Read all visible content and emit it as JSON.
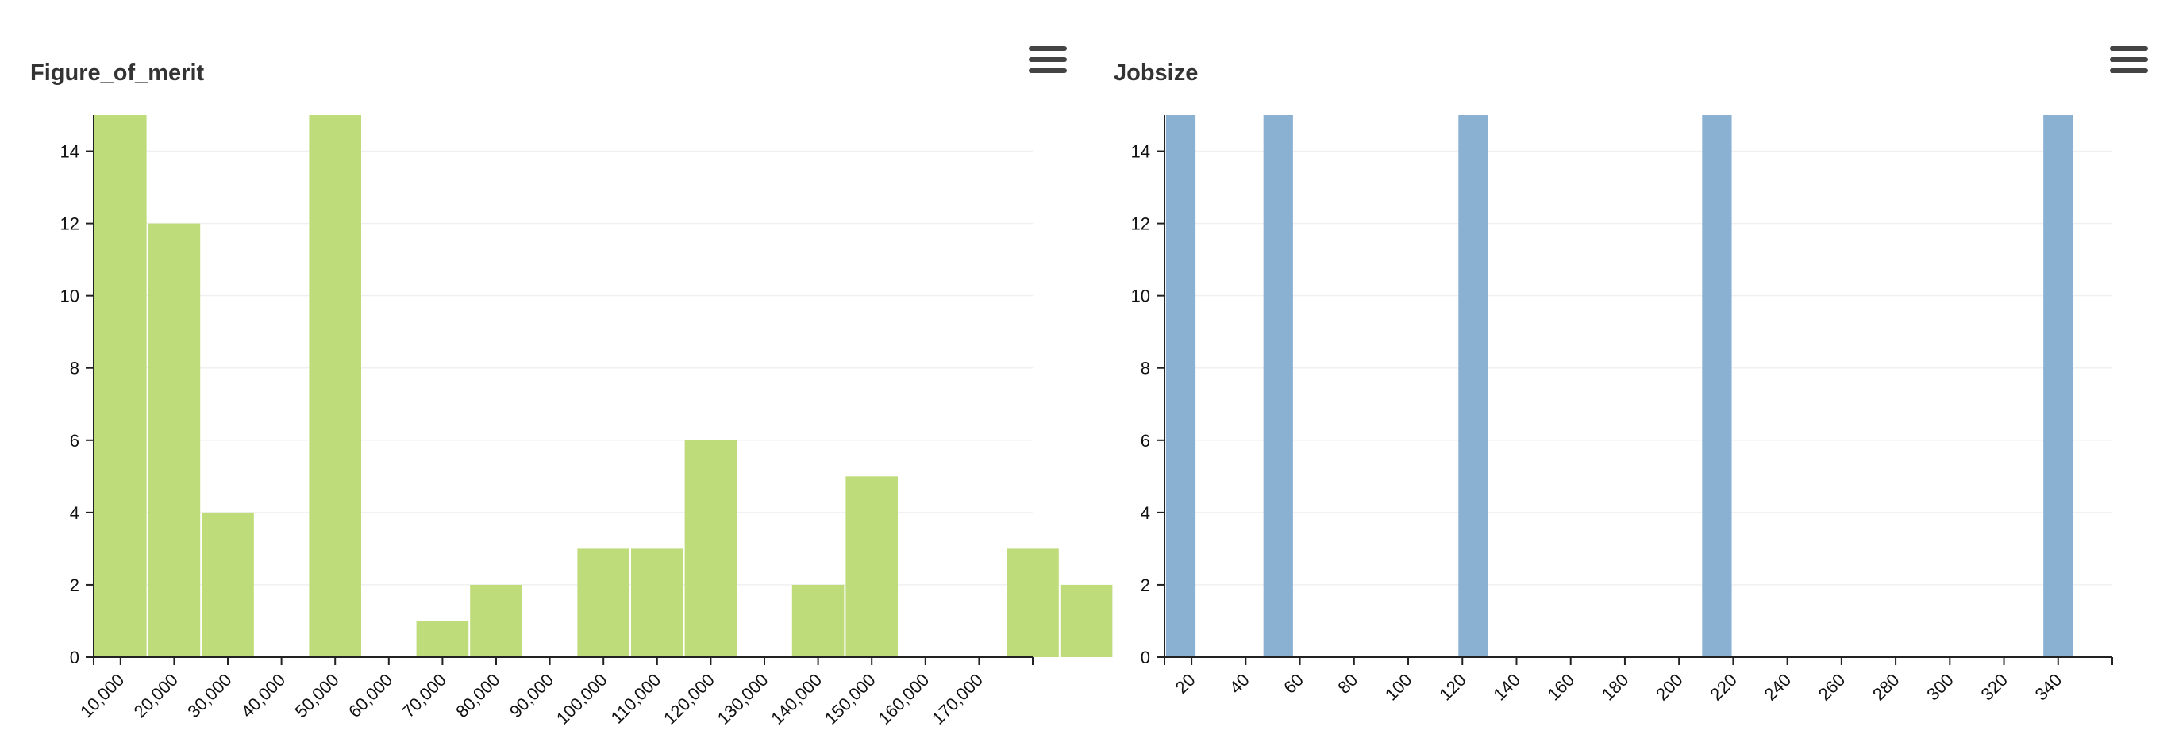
{
  "chart_data": [
    {
      "type": "bar",
      "title": "Figure_of_merit",
      "x_tick_labels": [
        "10,000",
        "20,000",
        "30,000",
        "40,000",
        "50,000",
        "60,000",
        "70,000",
        "80,000",
        "90,000",
        "100,000",
        "110,000",
        "120,000",
        "130,000",
        "140,000",
        "150,000",
        "160,000",
        "170,000"
      ],
      "bins": [
        {
          "center": 10000,
          "count": 15
        },
        {
          "center": 20000,
          "count": 12
        },
        {
          "center": 30000,
          "count": 4
        },
        {
          "center": 40000,
          "count": 0
        },
        {
          "center": 50000,
          "count": 15
        },
        {
          "center": 60000,
          "count": 0
        },
        {
          "center": 70000,
          "count": 1
        },
        {
          "center": 80000,
          "count": 2
        },
        {
          "center": 90000,
          "count": 0
        },
        {
          "center": 100000,
          "count": 3
        },
        {
          "center": 110000,
          "count": 3
        },
        {
          "center": 120000,
          "count": 6
        },
        {
          "center": 130000,
          "count": 0
        },
        {
          "center": 140000,
          "count": 2
        },
        {
          "center": 150000,
          "count": 5
        },
        {
          "center": 160000,
          "count": 0
        },
        {
          "center": 170000,
          "count": 0
        },
        {
          "center": 180000,
          "count": 3
        },
        {
          "center": 190000,
          "count": 2
        }
      ],
      "y_ticks": [
        0,
        2,
        4,
        6,
        8,
        10,
        12,
        14
      ],
      "ylim": [
        0,
        15
      ],
      "grid": true,
      "legend": "none",
      "color": "#bedc7a"
    },
    {
      "type": "bar",
      "title": "Jobsize",
      "x_tick_labels": [
        "20",
        "40",
        "60",
        "80",
        "100",
        "120",
        "140",
        "160",
        "180",
        "200",
        "220",
        "240",
        "260",
        "280",
        "300",
        "320",
        "340"
      ],
      "bins": [
        {
          "center": 16,
          "count": 15
        },
        {
          "center": 52,
          "count": 15
        },
        {
          "center": 124,
          "count": 15
        },
        {
          "center": 214,
          "count": 15
        },
        {
          "center": 340,
          "count": 15
        }
      ],
      "y_ticks": [
        0,
        2,
        4,
        6,
        8,
        10,
        12,
        14
      ],
      "ylim": [
        0,
        15
      ],
      "grid": true,
      "legend": "none",
      "color": "#8ab1d1"
    }
  ],
  "menu_icon": "hamburger-menu-icon"
}
